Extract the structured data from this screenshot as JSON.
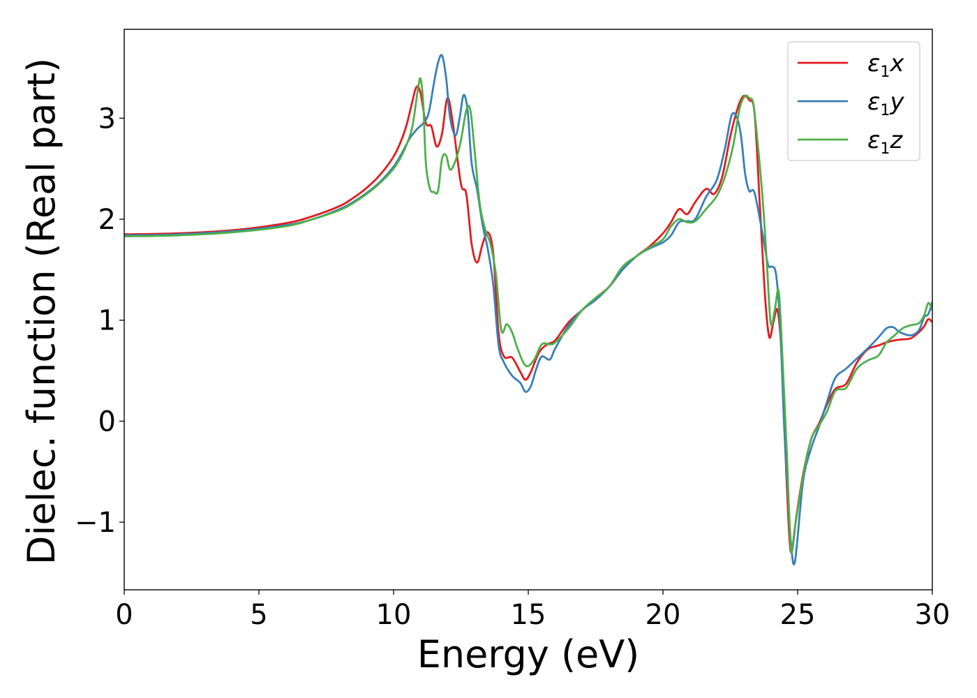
{
  "chart_data": {
    "type": "line",
    "xlabel": "Energy (eV)",
    "ylabel": "Dielec. function (Real part)",
    "xlim": [
      0,
      30
    ],
    "ylim": [
      -1.67,
      3.88
    ],
    "xticks": [
      0,
      5,
      10,
      15,
      20,
      25,
      30
    ],
    "xtick_labels": [
      "0",
      "5",
      "10",
      "15",
      "20",
      "25",
      "30"
    ],
    "yticks": [
      -1,
      0,
      1,
      2,
      3
    ],
    "ytick_labels": [
      "−1",
      "0",
      "1",
      "2",
      "3"
    ],
    "grid": false,
    "legend_position": "top-right",
    "series": [
      {
        "name": "ε₁x",
        "legend": {
          "symbol": "ε",
          "subscript": "1",
          "suffix": "x"
        },
        "color": "#e41a1c",
        "x": [
          0,
          2,
          4,
          6,
          7,
          8,
          8.5,
          9,
          9.5,
          10,
          10.3,
          10.5,
          10.7,
          10.85,
          11.0,
          11.2,
          11.4,
          11.6,
          11.8,
          12.0,
          12.2,
          12.5,
          12.7,
          12.9,
          13.1,
          13.3,
          13.5,
          13.7,
          13.9,
          14.1,
          14.4,
          14.7,
          14.9,
          15.1,
          15.4,
          15.7,
          16.0,
          16.5,
          17,
          17.5,
          18,
          18.5,
          19,
          19.5,
          20,
          20.3,
          20.6,
          20.9,
          21.2,
          21.6,
          21.9,
          22.2,
          22.5,
          22.8,
          23.0,
          23.2,
          23.4,
          23.6,
          23.8,
          23.95,
          24.1,
          24.25,
          24.4,
          24.55,
          24.7,
          24.8,
          24.95,
          25.2,
          25.5,
          25.8,
          26.1,
          26.4,
          26.8,
          27.2,
          27.6,
          28.0,
          28.3,
          28.6,
          28.9,
          29.2,
          29.5,
          29.7,
          29.85,
          30.0
        ],
        "y": [
          1.85,
          1.86,
          1.89,
          1.96,
          2.03,
          2.13,
          2.21,
          2.31,
          2.44,
          2.62,
          2.79,
          2.95,
          3.17,
          3.31,
          3.25,
          2.95,
          2.92,
          2.72,
          2.85,
          3.2,
          2.95,
          2.35,
          2.25,
          1.75,
          1.57,
          1.75,
          1.87,
          1.66,
          0.87,
          0.64,
          0.63,
          0.49,
          0.41,
          0.49,
          0.68,
          0.76,
          0.8,
          0.98,
          1.1,
          1.22,
          1.33,
          1.5,
          1.63,
          1.73,
          1.86,
          1.97,
          2.1,
          2.05,
          2.17,
          2.3,
          2.25,
          2.42,
          2.82,
          3.12,
          3.22,
          3.18,
          3.05,
          2.12,
          1.2,
          0.83,
          0.98,
          1.1,
          0.68,
          -0.33,
          -1.18,
          -1.27,
          -0.95,
          -0.53,
          -0.18,
          -0.02,
          0.17,
          0.32,
          0.37,
          0.58,
          0.71,
          0.75,
          0.78,
          0.8,
          0.81,
          0.82,
          0.88,
          0.94,
          1.01,
          0.98
        ]
      },
      {
        "name": "ε₁y",
        "legend": {
          "symbol": "ε",
          "subscript": "1",
          "suffix": "y"
        },
        "color": "#377eb8",
        "x": [
          0,
          2,
          4,
          6,
          7,
          8,
          8.5,
          9,
          9.5,
          10,
          10.3,
          10.6,
          10.9,
          11.1,
          11.3,
          11.5,
          11.65,
          11.8,
          11.95,
          12.1,
          12.3,
          12.45,
          12.6,
          12.75,
          12.9,
          13.1,
          13.3,
          13.5,
          13.7,
          13.9,
          14.1,
          14.4,
          14.7,
          14.9,
          15.1,
          15.3,
          15.5,
          15.8,
          16.0,
          16.5,
          17,
          17.5,
          18,
          18.5,
          19,
          19.5,
          20,
          20.3,
          20.6,
          20.9,
          21.2,
          21.6,
          22.0,
          22.3,
          22.55,
          22.75,
          22.9,
          23.05,
          23.2,
          23.4,
          23.7,
          23.9,
          24.05,
          24.2,
          24.35,
          24.5,
          24.65,
          24.75,
          24.9,
          25.2,
          25.5,
          25.8,
          26.1,
          26.4,
          26.8,
          27.2,
          27.6,
          28.0,
          28.3,
          28.55,
          28.8,
          29.2,
          29.5,
          29.7,
          29.85,
          30.0
        ],
        "y": [
          1.84,
          1.85,
          1.88,
          1.94,
          2.0,
          2.1,
          2.17,
          2.26,
          2.37,
          2.52,
          2.65,
          2.8,
          2.9,
          2.95,
          3.05,
          3.35,
          3.55,
          3.62,
          3.4,
          3.0,
          2.83,
          3.0,
          3.23,
          3.07,
          2.55,
          2.29,
          1.95,
          1.7,
          1.35,
          0.75,
          0.58,
          0.45,
          0.38,
          0.29,
          0.35,
          0.52,
          0.64,
          0.61,
          0.72,
          0.95,
          1.1,
          1.2,
          1.33,
          1.5,
          1.63,
          1.71,
          1.77,
          1.84,
          1.97,
          1.98,
          2.0,
          2.22,
          2.39,
          2.7,
          3.03,
          3.0,
          2.82,
          2.45,
          2.28,
          2.26,
          1.85,
          1.55,
          1.53,
          1.45,
          0.95,
          -0.05,
          -0.75,
          -1.2,
          -1.39,
          -0.6,
          -0.27,
          -0.05,
          0.2,
          0.43,
          0.52,
          0.62,
          0.72,
          0.83,
          0.92,
          0.93,
          0.88,
          0.85,
          0.9,
          1.03,
          1.06,
          1.18
        ]
      },
      {
        "name": "ε₁z",
        "legend": {
          "symbol": "ε",
          "subscript": "1",
          "suffix": "z"
        },
        "color": "#4daf4a",
        "x": [
          0,
          2,
          4,
          6,
          7,
          8,
          8.5,
          9,
          9.5,
          10,
          10.3,
          10.5,
          10.7,
          10.9,
          11.0,
          11.1,
          11.2,
          11.35,
          11.5,
          11.65,
          11.8,
          11.95,
          12.1,
          12.3,
          12.5,
          12.7,
          12.85,
          13.0,
          13.2,
          13.4,
          13.6,
          13.8,
          14.0,
          14.2,
          14.4,
          14.6,
          14.9,
          15.2,
          15.5,
          15.8,
          16.0,
          16.5,
          17,
          17.5,
          18,
          18.5,
          19,
          19.5,
          20,
          20.3,
          20.6,
          20.9,
          21.2,
          21.6,
          22.0,
          22.3,
          22.6,
          22.85,
          23.05,
          23.2,
          23.35,
          23.5,
          23.7,
          23.85,
          24.0,
          24.15,
          24.3,
          24.45,
          24.6,
          24.75,
          24.9,
          25.2,
          25.5,
          25.8,
          26.1,
          26.4,
          26.8,
          27.2,
          27.6,
          28.0,
          28.3,
          28.6,
          28.9,
          29.2,
          29.5,
          29.7,
          29.85,
          30.0
        ],
        "y": [
          1.83,
          1.84,
          1.87,
          1.93,
          2.0,
          2.09,
          2.16,
          2.25,
          2.36,
          2.5,
          2.63,
          2.75,
          2.92,
          3.28,
          3.39,
          3.15,
          2.55,
          2.3,
          2.27,
          2.28,
          2.6,
          2.63,
          2.49,
          2.58,
          2.78,
          3.08,
          3.08,
          2.7,
          2.15,
          1.9,
          1.75,
          1.45,
          0.9,
          0.96,
          0.88,
          0.72,
          0.55,
          0.6,
          0.76,
          0.76,
          0.78,
          0.92,
          1.1,
          1.22,
          1.33,
          1.53,
          1.63,
          1.72,
          1.8,
          1.93,
          2.0,
          1.97,
          1.98,
          2.1,
          2.23,
          2.42,
          2.72,
          3.1,
          3.22,
          3.2,
          3.15,
          2.8,
          2.2,
          1.6,
          0.97,
          1.1,
          1.28,
          0.55,
          -0.32,
          -1.27,
          -1.05,
          -0.55,
          -0.18,
          -0.04,
          0.1,
          0.3,
          0.33,
          0.52,
          0.6,
          0.65,
          0.78,
          0.85,
          0.92,
          0.95,
          0.97,
          1.05,
          1.17,
          1.1
        ]
      }
    ]
  }
}
